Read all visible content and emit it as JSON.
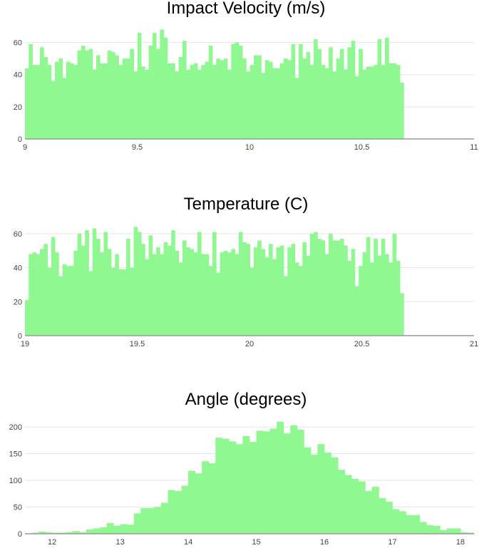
{
  "accent_color": "#90f890",
  "chart_data": [
    {
      "type": "bar",
      "title": "Impact Velocity (m/s)",
      "xlabel": "",
      "ylabel": "",
      "xlim": [
        9,
        11
      ],
      "ylim": [
        0,
        70
      ],
      "xticks": [
        9,
        9.5,
        10,
        10.5,
        11
      ],
      "xtick_labels": [
        "9",
        "9.5",
        "10",
        "10.5",
        "11"
      ],
      "yticks": [
        0,
        20,
        40,
        60
      ],
      "ytick_labels": [
        "0",
        "20",
        "40",
        "60"
      ],
      "grid": true,
      "bin_start": 9.0,
      "bin_width": 0.0167,
      "values": [
        44,
        59,
        46,
        46,
        57,
        51,
        46,
        36,
        48,
        50,
        38,
        48,
        47,
        46,
        55,
        58,
        55,
        56,
        43,
        52,
        47,
        47,
        55,
        54,
        52,
        46,
        50,
        50,
        56,
        42,
        66,
        45,
        43,
        58,
        66,
        56,
        68,
        63,
        47,
        47,
        42,
        51,
        61,
        43,
        46,
        47,
        43,
        46,
        48,
        58,
        46,
        50,
        49,
        50,
        43,
        59,
        60,
        58,
        50,
        42,
        46,
        52,
        52,
        41,
        49,
        48,
        44,
        44,
        47,
        50,
        49,
        59,
        38,
        59,
        50,
        54,
        46,
        62,
        56,
        46,
        44,
        57,
        42,
        50,
        56,
        43,
        57,
        61,
        39,
        56,
        43,
        45,
        45,
        46,
        62,
        46,
        63,
        47,
        47,
        46,
        35
      ],
      "bar_color": "#90f890"
    },
    {
      "type": "bar",
      "title": "Temperature (C)",
      "xlabel": "",
      "ylabel": "",
      "xlim": [
        19,
        21
      ],
      "ylim": [
        0,
        65
      ],
      "xticks": [
        19,
        19.5,
        20,
        20.5,
        21
      ],
      "xtick_labels": [
        "19",
        "19.5",
        "20",
        "20.5",
        "21"
      ],
      "yticks": [
        0,
        20,
        40,
        60
      ],
      "ytick_labels": [
        "0",
        "20",
        "40",
        "60"
      ],
      "grid": true,
      "bin_start": 19.0,
      "bin_width": 0.0167,
      "values": [
        21,
        48,
        49,
        48,
        51,
        54,
        40,
        58,
        49,
        35,
        42,
        41,
        41,
        50,
        60,
        53,
        62,
        38,
        63,
        57,
        49,
        61,
        51,
        40,
        48,
        39,
        39,
        57,
        40,
        64,
        61,
        54,
        45,
        59,
        48,
        52,
        48,
        55,
        53,
        62,
        50,
        43,
        56,
        52,
        51,
        49,
        61,
        48,
        48,
        41,
        61,
        37,
        49,
        50,
        49,
        51,
        48,
        61,
        55,
        54,
        40,
        52,
        56,
        51,
        46,
        54,
        45,
        52,
        53,
        35,
        52,
        54,
        43,
        41,
        55,
        47,
        60,
        61,
        57,
        56,
        48,
        60,
        56,
        56,
        57,
        53,
        44,
        51,
        29,
        41,
        49,
        58,
        43,
        57,
        47,
        57,
        48,
        43,
        60,
        44,
        25
      ],
      "bar_color": "#90f890"
    },
    {
      "type": "bar",
      "title": "Angle (degrees)",
      "xlabel": "",
      "ylabel": "",
      "xlim": [
        11.6,
        18.2
      ],
      "ylim": [
        0,
        215
      ],
      "xticks": [
        12,
        13,
        14,
        15,
        16,
        17,
        18
      ],
      "xtick_labels": [
        "12",
        "13",
        "14",
        "15",
        "16",
        "17",
        "18"
      ],
      "yticks": [
        0,
        50,
        100,
        150,
        200
      ],
      "ytick_labels": [
        "0",
        "50",
        "100",
        "150",
        "200"
      ],
      "grid": true,
      "bin_start": 11.6,
      "bin_width": 0.1,
      "values": [
        1,
        2,
        4,
        3,
        2,
        2,
        3,
        5,
        3,
        8,
        10,
        12,
        20,
        15,
        18,
        17,
        38,
        48,
        48,
        50,
        58,
        82,
        80,
        90,
        118,
        113,
        136,
        132,
        180,
        178,
        173,
        168,
        183,
        172,
        193,
        192,
        197,
        210,
        188,
        203,
        195,
        162,
        148,
        168,
        152,
        143,
        120,
        110,
        103,
        98,
        80,
        88,
        67,
        60,
        46,
        42,
        35,
        35,
        22,
        16,
        15,
        7,
        10,
        10,
        3,
        2,
        2,
        4,
        5,
        3
      ]
    }
  ]
}
